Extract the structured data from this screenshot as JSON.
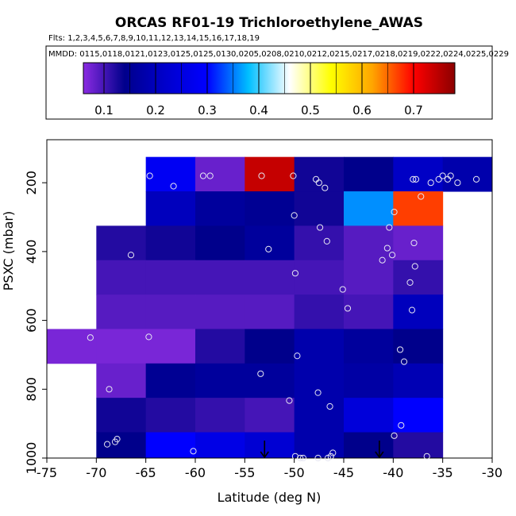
{
  "chart_data": {
    "type": "heatmap",
    "title": "ORCAS RF01-19 Trichloroethylene_AWAS",
    "flights_label": "Flts: 1,2,3,4,5,6,7,8,9,10,11,12,13,14,15,16,17,18,19",
    "dates_label": "MMDD: 0115,0118,0121,0123,0125,0125,0130,0205,0208,0210,0212,0215,0217,0218,0219,0222,0224,0225,0229",
    "xlabel": "Latitude (deg N)",
    "ylabel": "PSXC (mbar)",
    "xlim": [
      -75,
      -30
    ],
    "ylim": [
      1000,
      75
    ],
    "x_ticks": [
      -75,
      -70,
      -65,
      -60,
      -55,
      -50,
      -45,
      -40,
      -35,
      -30
    ],
    "x_tick_labels": [
      "-75",
      "-70",
      "-65",
      "-60",
      "-55",
      "-50",
      "-45",
      "-40",
      "-35",
      "-30"
    ],
    "y_ticks": [
      200,
      400,
      600,
      800,
      1000
    ],
    "y_tick_labels": [
      "200",
      "400",
      "600",
      "800",
      "1000"
    ],
    "colorbar": {
      "range": [
        0.06,
        0.78
      ],
      "ticks": [
        0.1,
        0.2,
        0.3,
        0.4,
        0.5,
        0.6,
        0.7
      ],
      "tick_labels": [
        "0.1",
        "0.2",
        "0.3",
        "0.4",
        "0.5",
        "0.6",
        "0.7"
      ],
      "colors": [
        "#8a2be2",
        "#00008b",
        "#0000cd",
        "#0000ff",
        "#00bfff",
        "#ffffff",
        "#ffff00",
        "#ffa500",
        "#ff0000",
        "#8b0000"
      ]
    },
    "cells": [
      {
        "x": [
          -65,
          -60
        ],
        "p": [
          125,
          225
        ],
        "value": 0.28
      },
      {
        "x": [
          -60,
          -55
        ],
        "p": [
          125,
          225
        ],
        "value": 0.08
      },
      {
        "x": [
          -55,
          -50
        ],
        "p": [
          125,
          225
        ],
        "value": 0.74
      },
      {
        "x": [
          -50,
          -45
        ],
        "p": [
          125,
          225
        ],
        "value": 0.13
      },
      {
        "x": [
          -45,
          -40
        ],
        "p": [
          125,
          225
        ],
        "value": 0.14
      },
      {
        "x": [
          -40,
          -35
        ],
        "p": [
          125,
          225
        ],
        "value": 0.21
      },
      {
        "x": [
          -35,
          -30
        ],
        "p": [
          125,
          225
        ],
        "value": 0.18
      },
      {
        "x": [
          -65,
          -60
        ],
        "p": [
          225,
          325
        ],
        "value": 0.2
      },
      {
        "x": [
          -60,
          -55
        ],
        "p": [
          225,
          325
        ],
        "value": 0.16
      },
      {
        "x": [
          -55,
          -50
        ],
        "p": [
          225,
          325
        ],
        "value": 0.15
      },
      {
        "x": [
          -50,
          -45
        ],
        "p": [
          225,
          325
        ],
        "value": 0.13
      },
      {
        "x": [
          -45,
          -40
        ],
        "p": [
          225,
          325
        ],
        "value": 0.36
      },
      {
        "x": [
          -40,
          -35
        ],
        "p": [
          225,
          325
        ],
        "value": 0.67
      },
      {
        "x": [
          -70,
          -65
        ],
        "p": [
          325,
          425
        ],
        "value": 0.12
      },
      {
        "x": [
          -65,
          -60
        ],
        "p": [
          325,
          425
        ],
        "value": 0.13
      },
      {
        "x": [
          -60,
          -55
        ],
        "p": [
          325,
          425
        ],
        "value": 0.14
      },
      {
        "x": [
          -55,
          -50
        ],
        "p": [
          325,
          425
        ],
        "value": 0.16
      },
      {
        "x": [
          -50,
          -45
        ],
        "p": [
          325,
          425
        ],
        "value": 0.11
      },
      {
        "x": [
          -45,
          -40
        ],
        "p": [
          325,
          425
        ],
        "value": 0.09
      },
      {
        "x": [
          -40,
          -35
        ],
        "p": [
          325,
          425
        ],
        "value": 0.08
      },
      {
        "x": [
          -70,
          -65
        ],
        "p": [
          425,
          525
        ],
        "value": 0.1
      },
      {
        "x": [
          -65,
          -60
        ],
        "p": [
          425,
          525
        ],
        "value": 0.1
      },
      {
        "x": [
          -60,
          -55
        ],
        "p": [
          425,
          525
        ],
        "value": 0.1
      },
      {
        "x": [
          -55,
          -50
        ],
        "p": [
          425,
          525
        ],
        "value": 0.1
      },
      {
        "x": [
          -50,
          -45
        ],
        "p": [
          425,
          525
        ],
        "value": 0.1
      },
      {
        "x": [
          -45,
          -40
        ],
        "p": [
          425,
          525
        ],
        "value": 0.09
      },
      {
        "x": [
          -40,
          -35
        ],
        "p": [
          425,
          525
        ],
        "value": 0.11
      },
      {
        "x": [
          -70,
          -65
        ],
        "p": [
          525,
          625
        ],
        "value": 0.09
      },
      {
        "x": [
          -65,
          -60
        ],
        "p": [
          525,
          625
        ],
        "value": 0.09
      },
      {
        "x": [
          -60,
          -55
        ],
        "p": [
          525,
          625
        ],
        "value": 0.09
      },
      {
        "x": [
          -55,
          -50
        ],
        "p": [
          525,
          625
        ],
        "value": 0.09
      },
      {
        "x": [
          -50,
          -45
        ],
        "p": [
          525,
          625
        ],
        "value": 0.11
      },
      {
        "x": [
          -45,
          -40
        ],
        "p": [
          525,
          625
        ],
        "value": 0.1
      },
      {
        "x": [
          -40,
          -35
        ],
        "p": [
          525,
          625
        ],
        "value": 0.2
      },
      {
        "x": [
          -75,
          -70
        ],
        "p": [
          625,
          725
        ],
        "value": 0.07
      },
      {
        "x": [
          -70,
          -65
        ],
        "p": [
          625,
          725
        ],
        "value": 0.07
      },
      {
        "x": [
          -65,
          -60
        ],
        "p": [
          625,
          725
        ],
        "value": 0.07
      },
      {
        "x": [
          -60,
          -55
        ],
        "p": [
          625,
          725
        ],
        "value": 0.12
      },
      {
        "x": [
          -55,
          -50
        ],
        "p": [
          625,
          725
        ],
        "value": 0.14
      },
      {
        "x": [
          -50,
          -45
        ],
        "p": [
          625,
          725
        ],
        "value": 0.18
      },
      {
        "x": [
          -45,
          -40
        ],
        "p": [
          625,
          725
        ],
        "value": 0.16
      },
      {
        "x": [
          -40,
          -35
        ],
        "p": [
          625,
          725
        ],
        "value": 0.14
      },
      {
        "x": [
          -70,
          -65
        ],
        "p": [
          725,
          825
        ],
        "value": 0.08
      },
      {
        "x": [
          -65,
          -60
        ],
        "p": [
          725,
          825
        ],
        "value": 0.15
      },
      {
        "x": [
          -60,
          -55
        ],
        "p": [
          725,
          825
        ],
        "value": 0.16
      },
      {
        "x": [
          -55,
          -50
        ],
        "p": [
          725,
          825
        ],
        "value": 0.16
      },
      {
        "x": [
          -50,
          -45
        ],
        "p": [
          725,
          825
        ],
        "value": 0.18
      },
      {
        "x": [
          -45,
          -40
        ],
        "p": [
          725,
          825
        ],
        "value": 0.17
      },
      {
        "x": [
          -40,
          -35
        ],
        "p": [
          725,
          825
        ],
        "value": 0.19
      },
      {
        "x": [
          -70,
          -65
        ],
        "p": [
          825,
          925
        ],
        "value": 0.13
      },
      {
        "x": [
          -65,
          -60
        ],
        "p": [
          825,
          925
        ],
        "value": 0.12
      },
      {
        "x": [
          -60,
          -55
        ],
        "p": [
          825,
          925
        ],
        "value": 0.11
      },
      {
        "x": [
          -55,
          -50
        ],
        "p": [
          825,
          925
        ],
        "value": 0.1
      },
      {
        "x": [
          -50,
          -45
        ],
        "p": [
          825,
          925
        ],
        "value": 0.18
      },
      {
        "x": [
          -45,
          -40
        ],
        "p": [
          825,
          925
        ],
        "value": 0.24
      },
      {
        "x": [
          -40,
          -35
        ],
        "p": [
          825,
          925
        ],
        "value": 0.3
      },
      {
        "x": [
          -70,
          -65
        ],
        "p": [
          925,
          1025
        ],
        "value": 0.14
      },
      {
        "x": [
          -65,
          -60
        ],
        "p": [
          925,
          1025
        ],
        "value": 0.3
      },
      {
        "x": [
          -60,
          -55
        ],
        "p": [
          925,
          1025
        ],
        "value": 0.26
      },
      {
        "x": [
          -55,
          -50
        ],
        "p": [
          925,
          1025
        ],
        "value": 0.23
      },
      {
        "x": [
          -50,
          -45
        ],
        "p": [
          925,
          1025
        ],
        "value": 0.18
      },
      {
        "x": [
          -45,
          -40
        ],
        "p": [
          925,
          1025
        ],
        "value": 0.14
      },
      {
        "x": [
          -40,
          -35
        ],
        "p": [
          925,
          1025
        ],
        "value": 0.12
      }
    ],
    "samples": [
      [
        -64.6,
        180
      ],
      [
        -62.2,
        210
      ],
      [
        -59.2,
        180
      ],
      [
        -58.5,
        180
      ],
      [
        -53.3,
        180
      ],
      [
        -50.1,
        180
      ],
      [
        -47.8,
        190
      ],
      [
        -47.5,
        200
      ],
      [
        -46.9,
        215
      ],
      [
        -38.0,
        190
      ],
      [
        -37.7,
        190
      ],
      [
        -36.2,
        200
      ],
      [
        -35.4,
        190
      ],
      [
        -35.0,
        180
      ],
      [
        -34.5,
        190
      ],
      [
        -34.2,
        180
      ],
      [
        -33.5,
        200
      ],
      [
        -31.6,
        190
      ],
      [
        -37.2,
        240
      ],
      [
        -50.0,
        295
      ],
      [
        -39.9,
        285
      ],
      [
        -47.4,
        330
      ],
      [
        -46.7,
        370
      ],
      [
        -40.4,
        330
      ],
      [
        -52.6,
        393
      ],
      [
        -37.9,
        375
      ],
      [
        -40.6,
        390
      ],
      [
        -40.1,
        410
      ],
      [
        -41.1,
        425
      ],
      [
        -66.5,
        410
      ],
      [
        -37.8,
        443
      ],
      [
        -49.9,
        463
      ],
      [
        -38.3,
        490
      ],
      [
        -45.1,
        510
      ],
      [
        -44.6,
        565
      ],
      [
        -38.1,
        570
      ],
      [
        -70.6,
        650
      ],
      [
        -64.7,
        648
      ],
      [
        -49.7,
        703
      ],
      [
        -39.3,
        685
      ],
      [
        -38.9,
        720
      ],
      [
        -53.4,
        755
      ],
      [
        -68.7,
        800
      ],
      [
        -47.6,
        810
      ],
      [
        -50.5,
        833
      ],
      [
        -46.4,
        850
      ],
      [
        -39.2,
        905
      ],
      [
        -39.9,
        935
      ],
      [
        -67.9,
        945
      ],
      [
        -68.9,
        960
      ],
      [
        -68.1,
        953
      ],
      [
        -60.2,
        980
      ],
      [
        -49.9,
        995
      ],
      [
        -49.4,
        1000
      ],
      [
        -49.1,
        1000
      ],
      [
        -47.6,
        1000
      ],
      [
        -46.6,
        1000
      ],
      [
        -46.3,
        995
      ],
      [
        -46.1,
        985
      ],
      [
        -36.6,
        995
      ]
    ],
    "arrows": [
      -53.0,
      -41.4
    ]
  }
}
